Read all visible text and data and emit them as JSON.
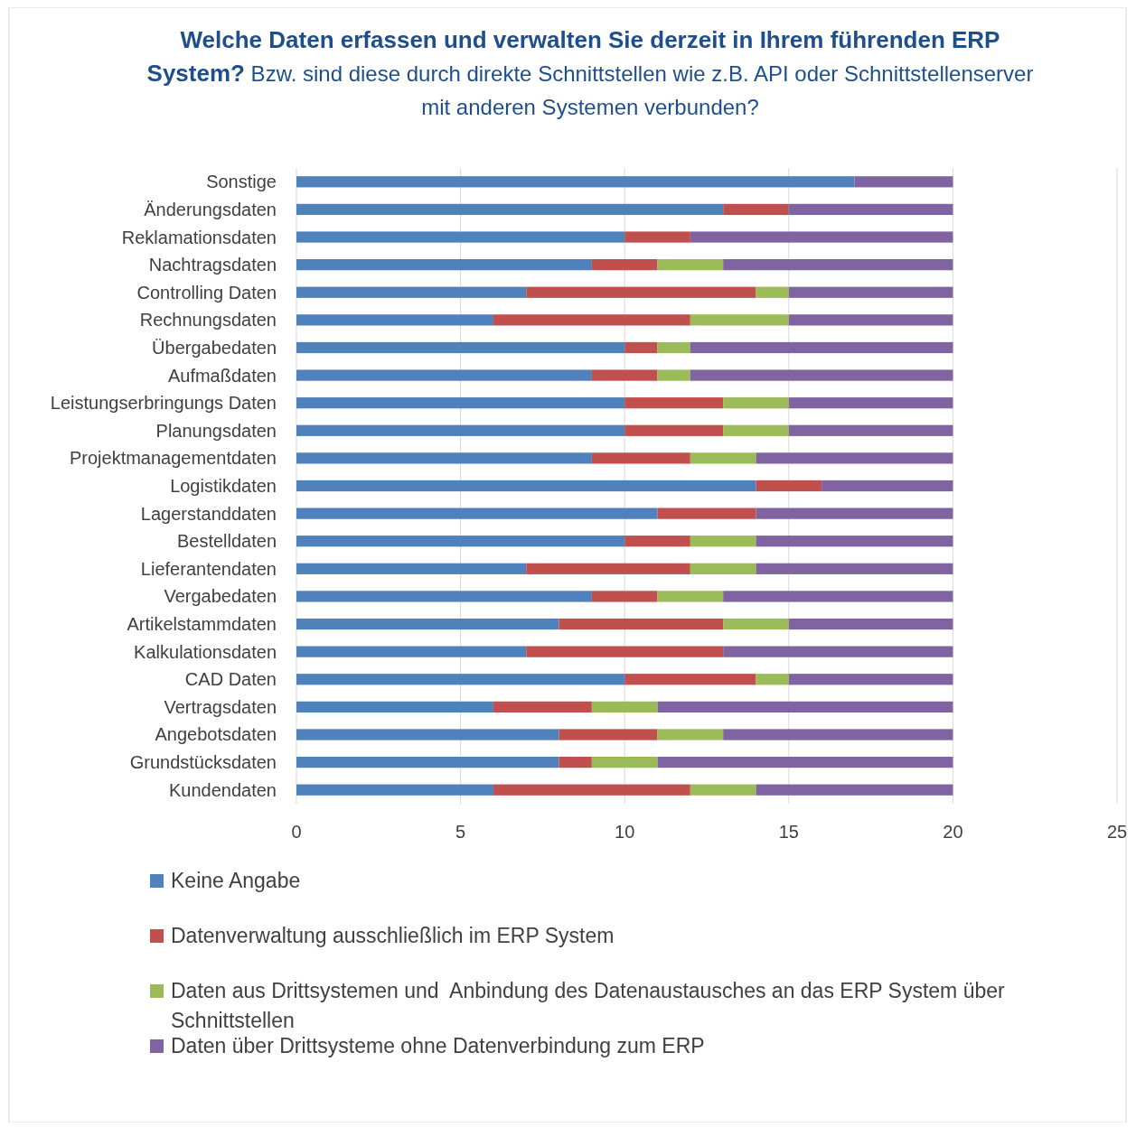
{
  "chart_data": {
    "type": "bar",
    "orientation": "horizontal",
    "stacked": true,
    "title": "Welche Daten erfassen und verwalten Sie derzeit in Ihrem führenden ERP System?",
    "subtitle": "Bzw. sind diese durch direkte Schnittstellen wie z.B. API oder Schnittstellenserver mit anderen Systemen verbunden?",
    "categories": [
      "Sonstige",
      "Änderungsdaten",
      "Reklamationsdaten",
      "Nachtragsdaten",
      "Controlling Daten",
      "Rechnungsdaten",
      "Übergabedaten",
      "Aufmaßdaten",
      "Leistungserbringungs Daten",
      "Planungsdaten",
      "Projektmanagementdaten",
      "Logistikdaten",
      "Lagerstanddaten",
      "Bestelldaten",
      "Lieferantendaten",
      "Vergabedaten",
      "Artikelstammdaten",
      "Kalkulationsdaten",
      "CAD Daten",
      "Vertragsdaten",
      "Angebotsdaten",
      "Grundstücksdaten",
      "Kundendaten"
    ],
    "series": [
      {
        "name": "Keine Angabe",
        "color": "#4f81bd",
        "values": [
          17,
          13,
          10,
          9,
          7,
          6,
          10,
          9,
          10,
          10,
          9,
          14,
          11,
          10,
          7,
          9,
          8,
          7,
          10,
          6,
          8,
          8,
          6
        ]
      },
      {
        "name": "Datenverwaltung ausschließlich im ERP System",
        "color": "#c0504d",
        "values": [
          0,
          2,
          2,
          2,
          7,
          6,
          1,
          2,
          3,
          3,
          3,
          2,
          3,
          2,
          5,
          2,
          5,
          6,
          4,
          3,
          3,
          1,
          6
        ]
      },
      {
        "name": "Daten aus Drittsystemen und  Anbindung des Datenaustausches an das ERP System über Schnittstellen",
        "color": "#9bbb59",
        "values": [
          0,
          0,
          0,
          2,
          1,
          3,
          1,
          1,
          2,
          2,
          2,
          0,
          0,
          2,
          2,
          2,
          2,
          0,
          1,
          2,
          2,
          2,
          2
        ]
      },
      {
        "name": "Daten über Drittsysteme ohne Datenverbindung zum ERP",
        "color": "#8064a2",
        "values": [
          3,
          5,
          8,
          7,
          5,
          5,
          8,
          8,
          5,
          5,
          6,
          4,
          6,
          6,
          6,
          7,
          5,
          7,
          5,
          9,
          7,
          9,
          6
        ]
      }
    ],
    "xlim": [
      0,
      25
    ],
    "xticks": [
      0,
      5,
      10,
      15,
      20,
      25
    ],
    "grid": "x",
    "legend": "bottom"
  }
}
